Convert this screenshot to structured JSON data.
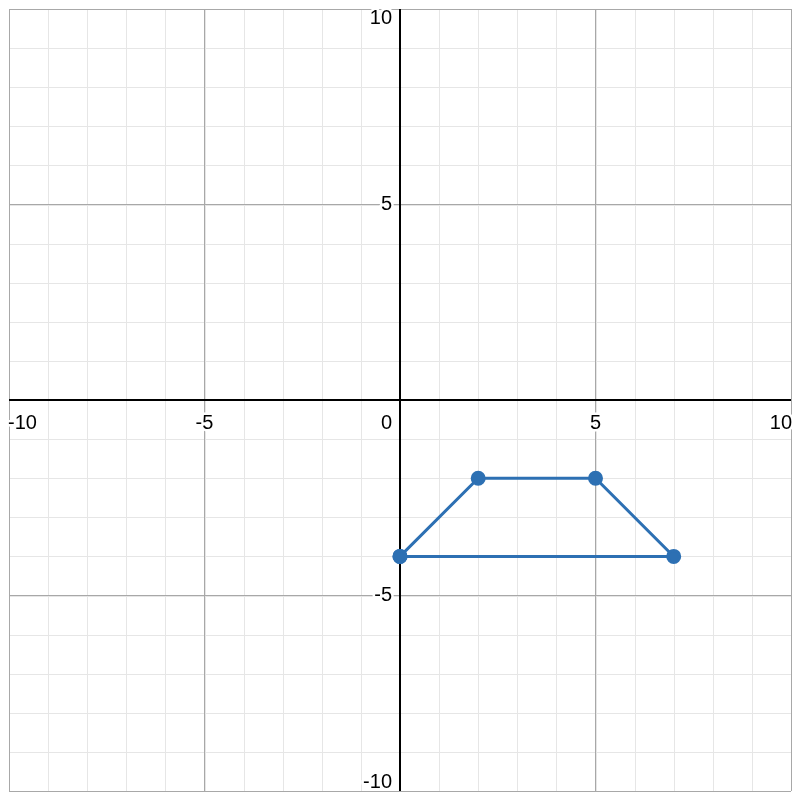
{
  "chart_data": {
    "type": "polygon",
    "x": [
      0,
      2,
      5,
      7
    ],
    "values": [
      -4,
      -2,
      -2,
      -4
    ],
    "color": "#2d70b3",
    "marker": "circle",
    "line_style": "solid",
    "xlim": [
      -10,
      10
    ],
    "ylim": [
      -10,
      10
    ],
    "xticks": [
      -10,
      -5,
      0,
      5,
      10
    ],
    "yticks": [
      -10,
      -5,
      5,
      10
    ],
    "grid": true
  }
}
